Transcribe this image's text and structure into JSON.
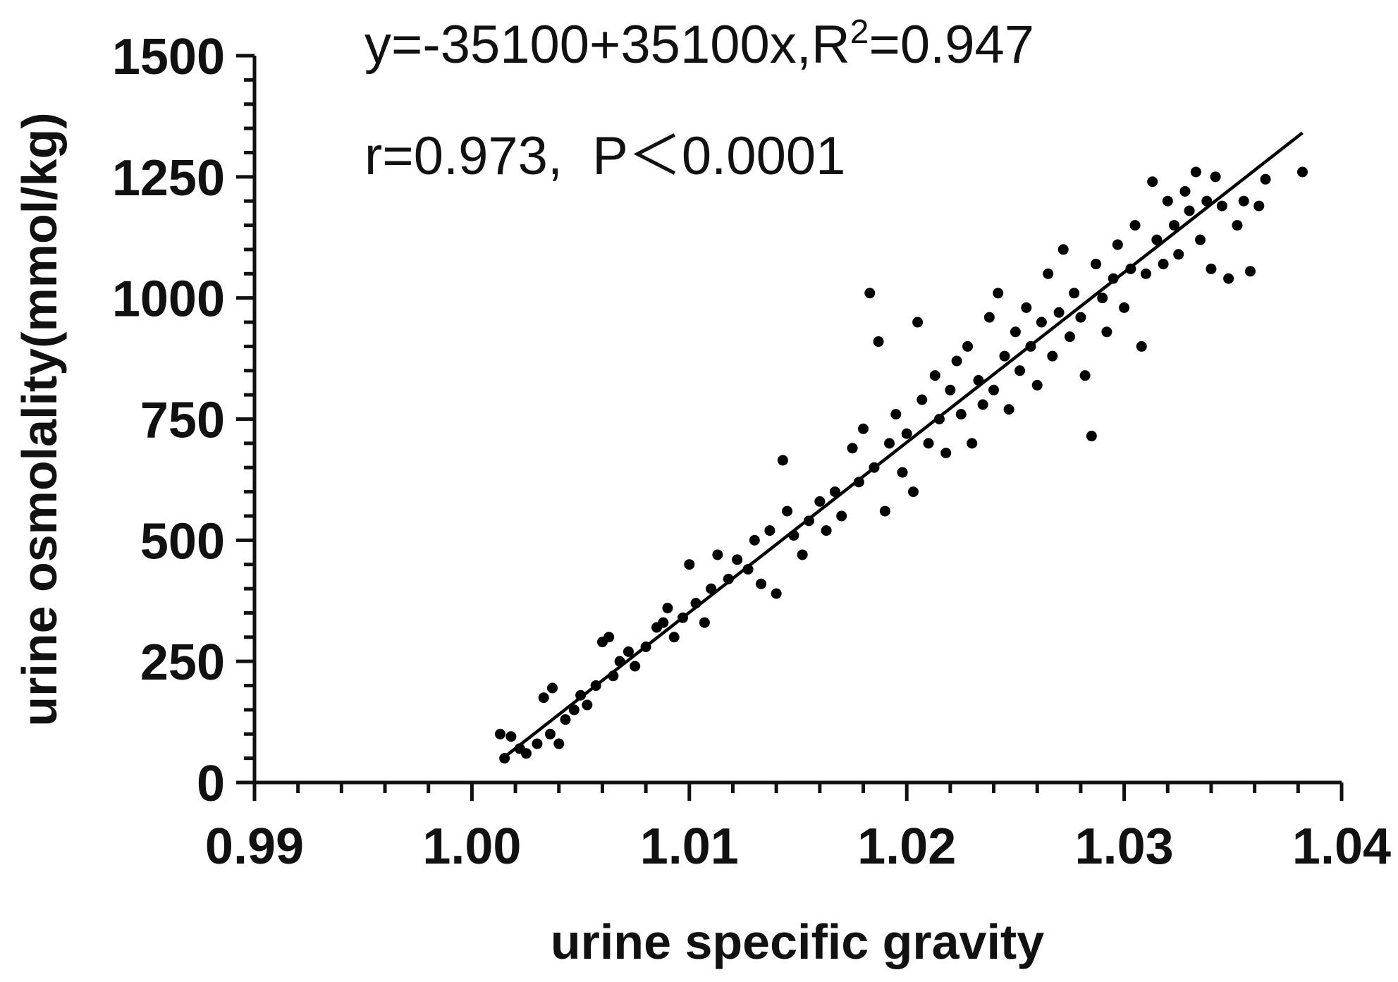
{
  "chart_data": {
    "type": "scatter",
    "x_label": "urine specific gravity",
    "y_label": "urine osmolality(mmol/kg)",
    "annotations": [
      "y=-35100+35100x,R",
      "2",
      "=0.947",
      "r=0.973,  P＜0.0001"
    ],
    "xlim": [
      0.99,
      1.04
    ],
    "ylim": [
      0,
      1500
    ],
    "xticks": [
      0.99,
      {
        "value": 1,
        "label": "1.00"
      },
      1.01,
      1.02,
      1.03,
      1.04
    ],
    "yticks": [
      0,
      250,
      500,
      750,
      1000,
      1250,
      1500
    ],
    "xminorticks": [
      0.992,
      0.994,
      0.996,
      0.998,
      1.002,
      1.004,
      1.006,
      1.008,
      1.012,
      1.014,
      1.016,
      1.018,
      1.022,
      1.024,
      1.026,
      1.028,
      1.032,
      1.034,
      1.036,
      1.038
    ],
    "yminorticks": [
      50,
      100,
      150,
      200,
      300,
      350,
      400,
      450,
      550,
      600,
      650,
      700,
      800,
      850,
      900,
      950,
      1050,
      1100,
      1150,
      1200,
      1300,
      1350,
      1400,
      1450
    ],
    "fit_line": {
      "color": "#000000",
      "x": [
        1.0015,
        1.0382
      ],
      "values": [
        52.65,
        1340.82
      ]
    },
    "series": [
      {
        "color": "#000000",
        "x": [
          1.0013,
          1.0015,
          1.0018,
          1.0022,
          1.0025,
          1.003,
          1.0033,
          1.0037,
          1.0036,
          1.004,
          1.0043,
          1.0047,
          1.005,
          1.0053,
          1.0057,
          1.006,
          1.0063,
          1.0065,
          1.0068,
          1.0072,
          1.0075,
          1.008,
          1.0085,
          1.0088,
          1.009,
          1.0093,
          1.0097,
          1.01,
          1.0103,
          1.0107,
          1.011,
          1.0113,
          1.0118,
          1.0122,
          1.0127,
          1.013,
          1.0133,
          1.0137,
          1.014,
          1.0143,
          1.0145,
          1.0148,
          1.0152,
          1.0155,
          1.016,
          1.0163,
          1.0167,
          1.017,
          1.0175,
          1.0178,
          1.018,
          1.0183,
          1.0187,
          1.0185,
          1.019,
          1.0192,
          1.0195,
          1.0198,
          1.02,
          1.0203,
          1.0205,
          1.0207,
          1.021,
          1.0213,
          1.0215,
          1.0218,
          1.022,
          1.0223,
          1.0225,
          1.0228,
          1.023,
          1.0233,
          1.0235,
          1.0238,
          1.024,
          1.0242,
          1.0245,
          1.0247,
          1.025,
          1.0252,
          1.0255,
          1.0257,
          1.026,
          1.0262,
          1.0265,
          1.0267,
          1.027,
          1.0272,
          1.0275,
          1.0277,
          1.028,
          1.0282,
          1.0285,
          1.0287,
          1.029,
          1.0292,
          1.0295,
          1.0297,
          1.03,
          1.0303,
          1.0305,
          1.0308,
          1.031,
          1.0313,
          1.0315,
          1.0318,
          1.032,
          1.0323,
          1.0325,
          1.0328,
          1.033,
          1.0333,
          1.0335,
          1.0338,
          1.034,
          1.0342,
          1.0345,
          1.0348,
          1.0352,
          1.0355,
          1.0358,
          1.0362,
          1.0365,
          1.0382
        ],
        "values": [
          100,
          50,
          95,
          70,
          60,
          80,
          175,
          195,
          100,
          80,
          130,
          150,
          180,
          160,
          200,
          290,
          300,
          220,
          250,
          270,
          240,
          280,
          320,
          330,
          360,
          300,
          340,
          450,
          370,
          330,
          400,
          470,
          420,
          460,
          440,
          500,
          410,
          520,
          390,
          665,
          560,
          510,
          470,
          540,
          580,
          520,
          600,
          550,
          690,
          620,
          730,
          1010,
          910,
          650,
          560,
          700,
          760,
          640,
          720,
          600,
          950,
          790,
          700,
          840,
          750,
          680,
          810,
          870,
          760,
          900,
          700,
          830,
          780,
          960,
          810,
          1010,
          880,
          770,
          930,
          850,
          980,
          900,
          820,
          950,
          1050,
          880,
          970,
          1100,
          920,
          1010,
          960,
          840,
          715,
          1070,
          1000,
          930,
          1040,
          1110,
          980,
          1060,
          1150,
          900,
          1050,
          1240,
          1120,
          1070,
          1200,
          1150,
          1090,
          1220,
          1180,
          1260,
          1120,
          1200,
          1060,
          1250,
          1190,
          1040,
          1150,
          1200,
          1055,
          1190,
          1245,
          1260
        ]
      }
    ]
  }
}
